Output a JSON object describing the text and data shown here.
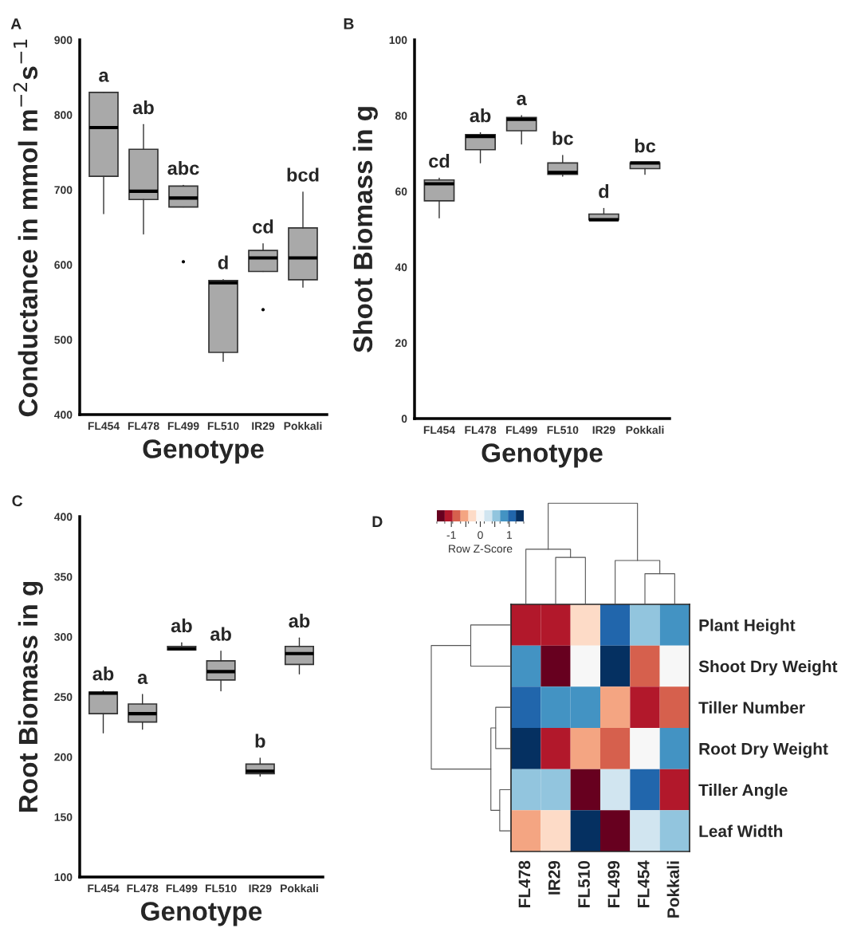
{
  "chart_data": [
    {
      "type": "box",
      "xlabel": "Genotype",
      "ylabel": "Conductance in mmol m$^{−2}$s$^{−1}$",
      "categories": [
        "FL454",
        "FL478",
        "FL499",
        "FL510",
        "IR29",
        "Pokkali"
      ],
      "ylim": [
        400,
        900
      ],
      "yticks": [
        400,
        500,
        600,
        700,
        800,
        900
      ],
      "grid": false,
      "series": [
        {
          "color": "#a9a9a9",
          "boxes": [
            {
              "low": 668,
              "q1": 718,
              "median": 783,
              "q3": 830,
              "high": 830
            },
            {
              "low": 641,
              "q1": 687,
              "median": 698,
              "q3": 754,
              "high": 787
            },
            {
              "low": 677,
              "q1": 677,
              "median": 689,
              "q3": 705,
              "high": 706,
              "outliers": [
                604
              ]
            },
            {
              "low": 471,
              "q1": 483,
              "median": 576,
              "q3": 579,
              "high": 580
            },
            {
              "low": 591,
              "q1": 591,
              "median": 609,
              "q3": 619,
              "high": 628,
              "outliers": [
                540
              ]
            },
            {
              "low": 570,
              "q1": 580,
              "median": 609,
              "q3": 649,
              "high": 697
            }
          ]
        }
      ],
      "annotations": [
        "A",
        "a",
        "ab",
        "abc",
        "d",
        "cd",
        "bcd"
      ]
    },
    {
      "type": "box",
      "xlabel": "Genotype",
      "ylabel": "Shoot Biomass in g",
      "categories": [
        "FL454",
        "FL478",
        "FL499",
        "FL510",
        "IR29",
        "Pokkali"
      ],
      "ylim": [
        0,
        100
      ],
      "yticks": [
        0,
        20,
        40,
        60,
        80,
        100
      ],
      "grid": false,
      "series": [
        {
          "color": "#a9a9a9",
          "boxes": [
            {
              "low": 53,
              "q1": 57.5,
              "median": 62,
              "q3": 63,
              "high": 63.5
            },
            {
              "low": 67.5,
              "q1": 71,
              "median": 74.5,
              "q3": 75,
              "high": 75.5
            },
            {
              "low": 72.5,
              "q1": 76,
              "median": 79,
              "q3": 79.5,
              "high": 80
            },
            {
              "low": 64,
              "q1": 64.5,
              "median": 65,
              "q3": 67.5,
              "high": 69.5
            },
            {
              "low": 52.5,
              "q1": 52.5,
              "median": 52.5,
              "q3": 54,
              "high": 55.5
            },
            {
              "low": 64.5,
              "q1": 66,
              "median": 67.5,
              "q3": 67.5,
              "high": 67.5
            }
          ]
        }
      ],
      "annotations": [
        "B",
        "cd",
        "ab",
        "a",
        "bc",
        "d",
        "bc"
      ]
    },
    {
      "type": "box",
      "xlabel": "Genotype",
      "ylabel": "Root Biomass in g",
      "categories": [
        "FL454",
        "FL478",
        "FL499",
        "FL510",
        "IR29",
        "Pokkali"
      ],
      "ylim": [
        100,
        400
      ],
      "yticks": [
        100,
        150,
        200,
        250,
        300,
        350,
        400
      ],
      "grid": false,
      "series": [
        {
          "color": "#a9a9a9",
          "boxes": [
            {
              "low": 220,
              "q1": 236,
              "median": 253,
              "q3": 254,
              "high": 255
            },
            {
              "low": 223,
              "q1": 229,
              "median": 236,
              "q3": 244,
              "high": 252
            },
            {
              "low": 289,
              "q1": 289,
              "median": 290,
              "q3": 292,
              "high": 295
            },
            {
              "low": 255,
              "q1": 264,
              "median": 271,
              "q3": 280,
              "high": 288
            },
            {
              "low": 184,
              "q1": 186,
              "median": 188,
              "q3": 194,
              "high": 199
            },
            {
              "low": 269,
              "q1": 277,
              "median": 286,
              "q3": 292,
              "high": 299
            }
          ]
        }
      ],
      "annotations": [
        "C",
        "ab",
        "a",
        "ab",
        "ab",
        "b",
        "ab"
      ]
    },
    {
      "type": "heatmap",
      "categories": [
        "FL478",
        "IR29",
        "FL510",
        "FL499",
        "FL454",
        "Pokkali"
      ],
      "y_categories": [
        "Plant Height",
        "Shoot Dry Weight",
        "Tiller Number",
        "Root Dry Weight",
        "Tiller Angle",
        "Leaf Width"
      ],
      "clabel": "Row Z-Score",
      "clim": [
        -1.5,
        1.5
      ],
      "cticks": [
        -1,
        {
          "value": -0.5,
          "label": null
        },
        0,
        {
          "value": 0.5,
          "label": null
        },
        1
      ],
      "cells": [
        [
          -1.1,
          -1.1,
          -0.3,
          1.1,
          0.5,
          0.8
        ],
        [
          0.8,
          -1.4,
          0,
          1.4,
          -0.8,
          0
        ],
        [
          1.1,
          0.8,
          0.8,
          -0.5,
          -1.1,
          -0.8
        ],
        [
          1.4,
          -1.1,
          -0.5,
          -0.8,
          0,
          0.8
        ],
        [
          0.5,
          0.5,
          -1.4,
          0.3,
          1.1,
          -1.1
        ],
        [
          -0.5,
          -0.3,
          1.4,
          -1.4,
          0.3,
          0.5
        ]
      ],
      "annotations": [
        "D"
      ]
    }
  ]
}
